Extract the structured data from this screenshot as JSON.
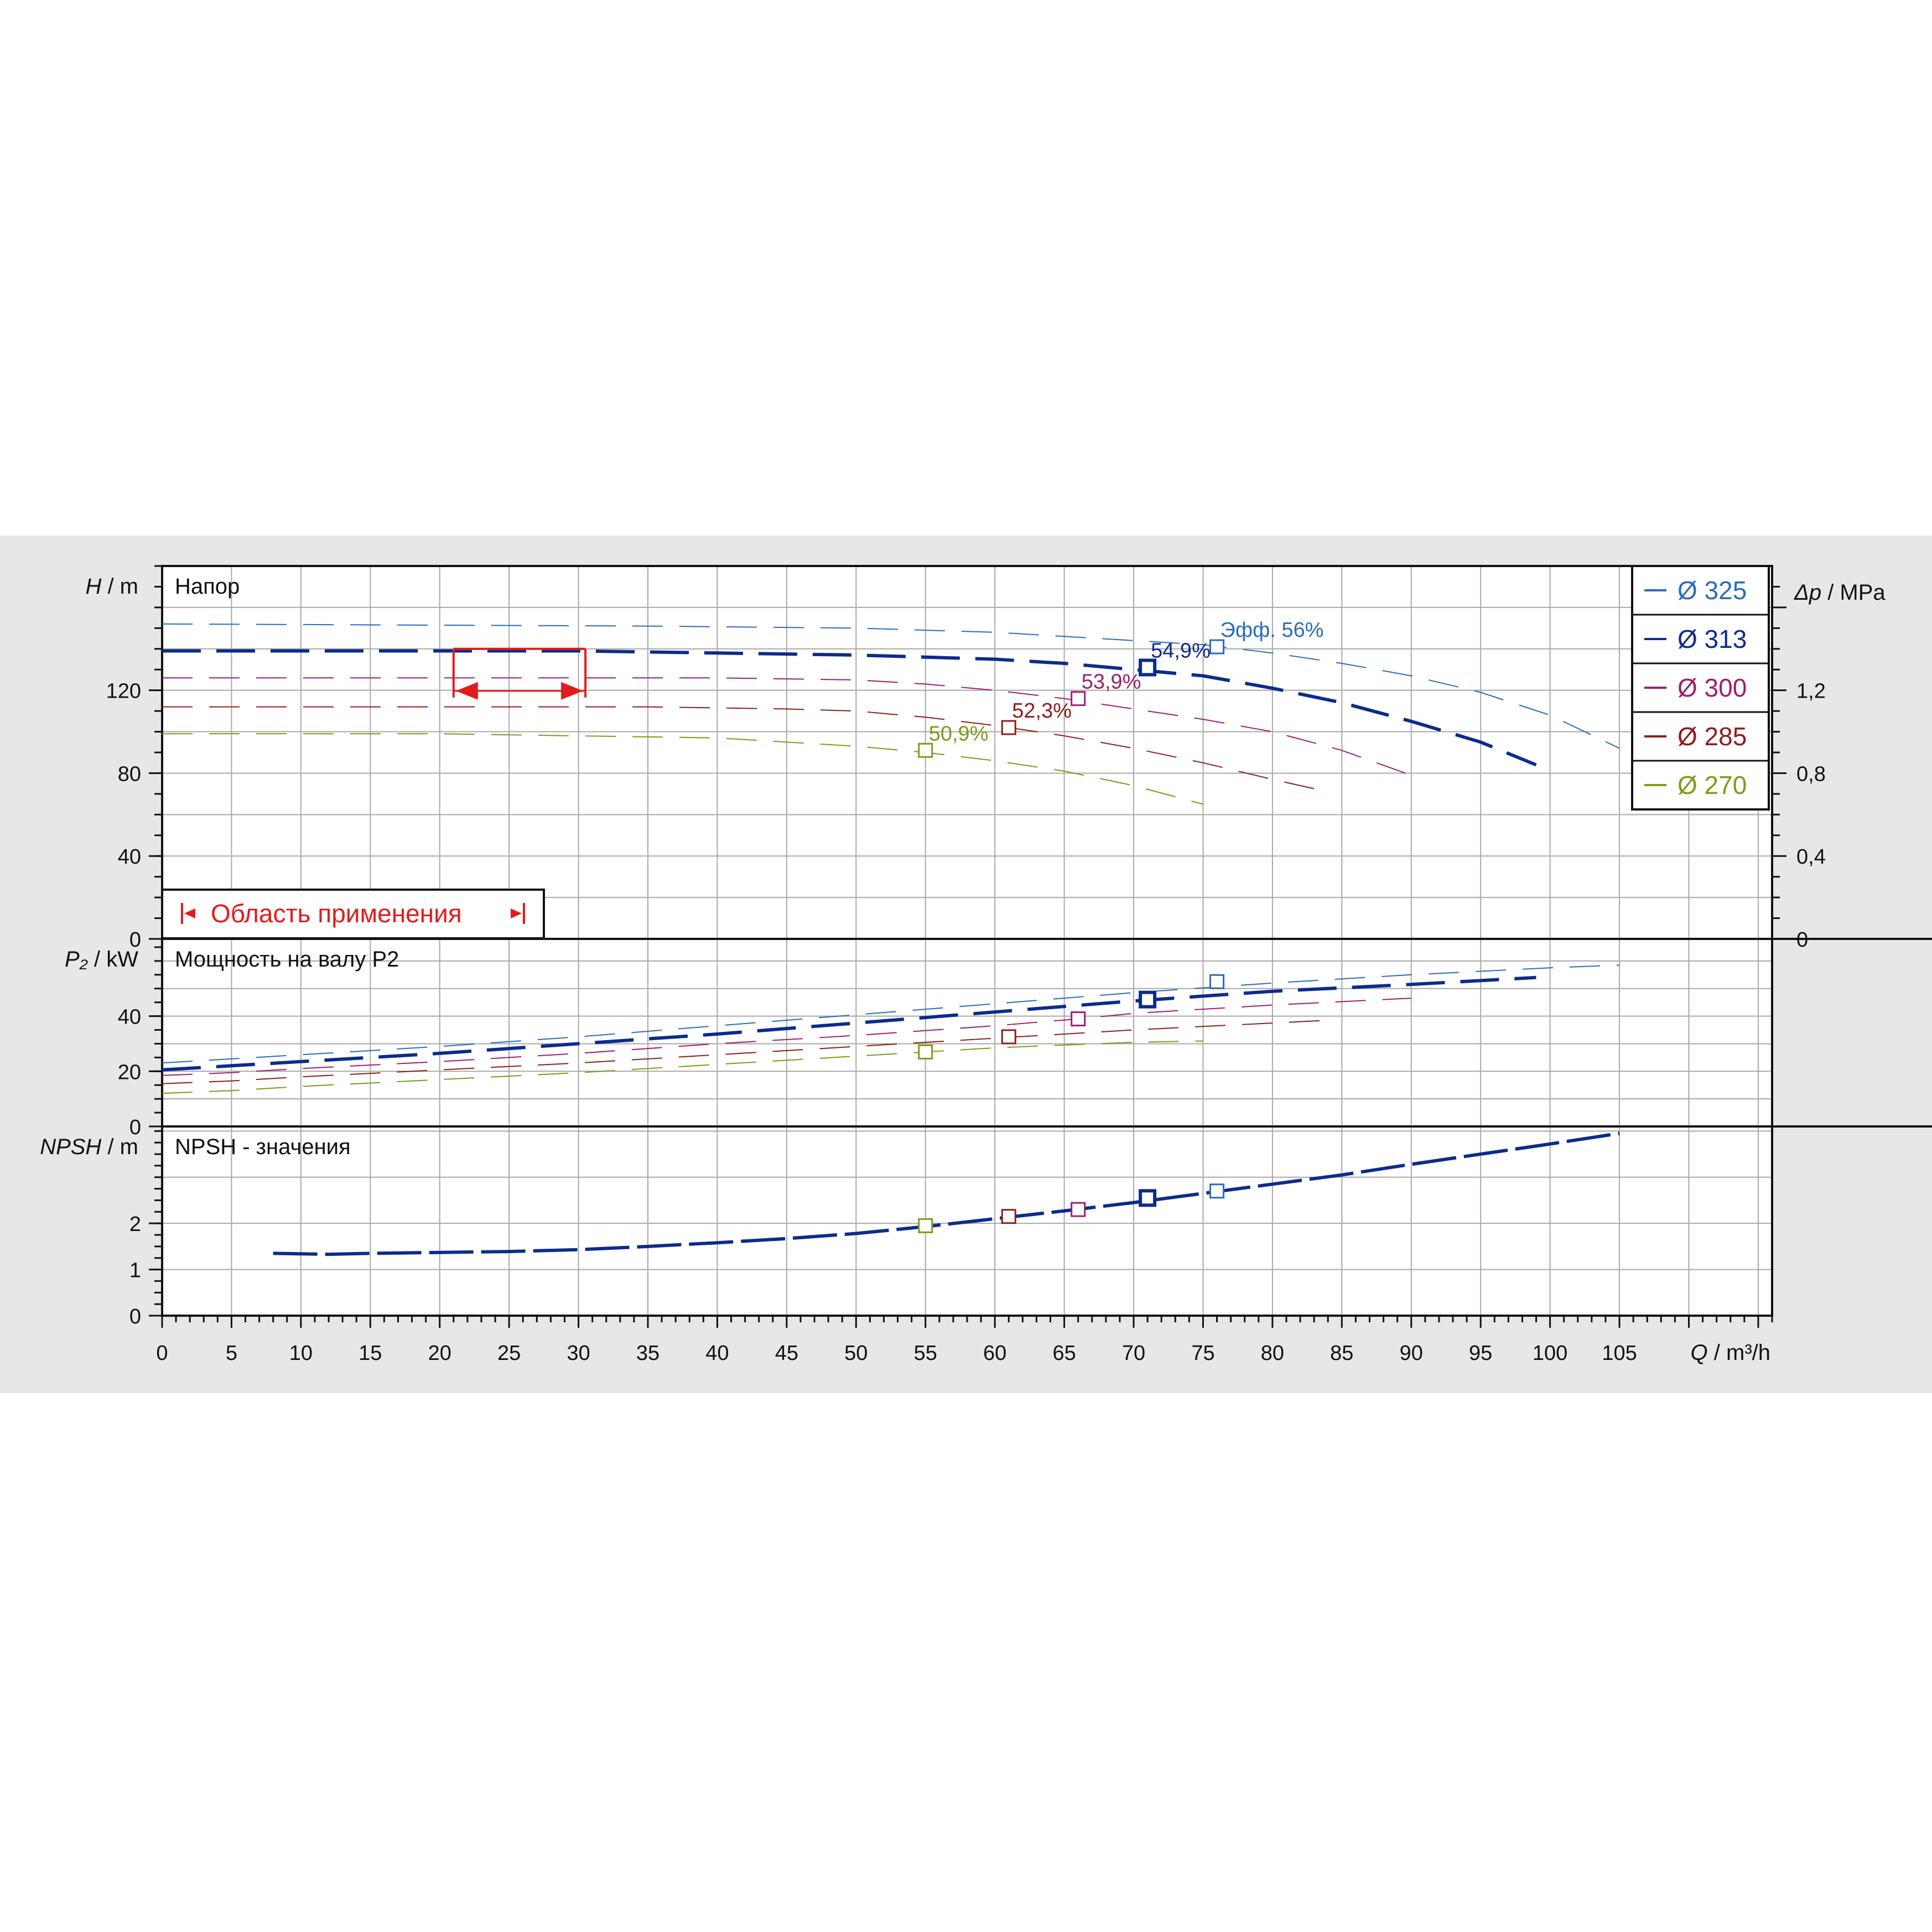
{
  "chart_data": {
    "type": "line",
    "x_axis": {
      "label_var": "Q",
      "label_unit": "m³/h",
      "range": [
        0,
        116
      ],
      "ticks": [
        0,
        5,
        10,
        15,
        20,
        25,
        30,
        35,
        40,
        45,
        50,
        55,
        60,
        65,
        70,
        75,
        80,
        85,
        90,
        95,
        100,
        105
      ]
    },
    "panels": [
      {
        "id": "head",
        "title": "Напор",
        "ylabel_var": "H",
        "ylabel_unit": "m",
        "ylim": [
          0,
          180
        ],
        "yticks": [
          0,
          40,
          80,
          120
        ],
        "secondary_axis": {
          "label_var": "Δp",
          "label_unit": "MPa",
          "ticks": [
            "0",
            "0,4",
            "0,8",
            "1,2"
          ],
          "ylim": [
            0,
            1.8
          ]
        },
        "application_range": {
          "label": "Область применения",
          "q_range": [
            21,
            30.5
          ],
          "h": 140
        }
      },
      {
        "id": "power",
        "title": "Мощность на валу P2",
        "ylabel_var": "P₂",
        "ylabel_unit": "kW",
        "ylim": [
          0,
          68
        ],
        "yticks": [
          0,
          20,
          40
        ]
      },
      {
        "id": "npsh",
        "title": "NPSH - значения",
        "ylabel_var": "NPSH",
        "ylabel_unit": "m",
        "ylim": [
          0,
          4.1
        ],
        "yticks": [
          0,
          1,
          2
        ]
      }
    ],
    "series": [
      {
        "name": "Ø 325",
        "color": "#2a6db8",
        "weight": 2,
        "head": {
          "x": [
            0,
            35,
            50,
            60,
            65,
            70,
            75,
            80,
            85,
            90,
            95,
            100,
            105
          ],
          "y": [
            152,
            151,
            150,
            148,
            146,
            144,
            142,
            138,
            133,
            127,
            119,
            108,
            92
          ]
        },
        "power": {
          "x": [
            0,
            5,
            10,
            20,
            30,
            40,
            50,
            60,
            70,
            80,
            90,
            100,
            105
          ],
          "y": [
            23,
            24.5,
            26,
            29,
            32.5,
            36.5,
            40.5,
            44.5,
            48.5,
            52,
            55,
            57.5,
            58.5
          ]
        },
        "bep": {
          "q": 76,
          "h": 141,
          "p": 52.5,
          "npsh": 2.7,
          "label": "Эфф.  56%"
        }
      },
      {
        "name": "Ø 313",
        "color": "#0d2b8c",
        "weight": 6,
        "head": {
          "x": [
            0,
            30,
            40,
            50,
            60,
            65,
            70,
            75,
            80,
            85,
            90,
            95,
            99
          ],
          "y": [
            139,
            139,
            138,
            137,
            135,
            133,
            130,
            127,
            121,
            114,
            105,
            95,
            84
          ]
        },
        "power": {
          "x": [
            0,
            5,
            10,
            20,
            30,
            40,
            50,
            60,
            70,
            80,
            90,
            99
          ],
          "y": [
            20.5,
            22,
            23.5,
            26.5,
            30,
            33.5,
            37.5,
            41.5,
            45.5,
            49,
            51.5,
            54
          ]
        },
        "bep": {
          "q": 71,
          "h": 131,
          "p": 46,
          "npsh": 2.55,
          "label": "54,9%"
        }
      },
      {
        "name": "Ø 300",
        "color": "#9e1f6e",
        "weight": 2,
        "head": {
          "x": [
            0,
            40,
            50,
            55,
            60,
            65,
            70,
            75,
            80,
            85,
            90
          ],
          "y": [
            126,
            126,
            125,
            123,
            120,
            116,
            111,
            106,
            100,
            91,
            79
          ]
        },
        "power": {
          "x": [
            0,
            5,
            10,
            20,
            30,
            40,
            50,
            60,
            66,
            70,
            80,
            90
          ],
          "y": [
            18.5,
            19.5,
            21,
            23.5,
            26.5,
            30,
            33,
            36.5,
            39,
            41,
            44,
            46.5
          ]
        },
        "bep": {
          "q": 66,
          "h": 116,
          "p": 39,
          "npsh": 2.3,
          "label": "53,9%"
        }
      },
      {
        "name": "Ø 285",
        "color": "#8c1f1a",
        "weight": 2,
        "head": {
          "x": [
            0,
            35,
            45,
            50,
            55,
            60,
            65,
            70,
            75,
            80,
            84
          ],
          "y": [
            112,
            112,
            111,
            110,
            107,
            103,
            98,
            92,
            85,
            77,
            71
          ]
        },
        "power": {
          "x": [
            0,
            5,
            10,
            20,
            30,
            40,
            50,
            60,
            70,
            80,
            84
          ],
          "y": [
            15.5,
            16.5,
            18,
            20.5,
            23,
            26,
            29,
            32,
            35,
            37.5,
            38.5
          ]
        },
        "bep": {
          "q": 61,
          "h": 102,
          "p": 32.5,
          "npsh": 2.15,
          "label": "52,3%"
        }
      },
      {
        "name": "Ø 270",
        "color": "#7f9a1a",
        "weight": 2,
        "head": {
          "x": [
            0,
            20,
            30,
            40,
            45,
            50,
            55,
            60,
            65,
            70,
            75
          ],
          "y": [
            99,
            99,
            98,
            97,
            95,
            93,
            90,
            86,
            81,
            74,
            65
          ]
        },
        "power": {
          "x": [
            0,
            5,
            10,
            20,
            30,
            40,
            50,
            55,
            60,
            70,
            75
          ],
          "y": [
            12,
            13,
            14.5,
            17,
            19.5,
            22.5,
            25.5,
            27,
            28.5,
            30.5,
            31
          ]
        },
        "bep": {
          "q": 55,
          "h": 91,
          "p": 27,
          "npsh": 1.95,
          "label": "50,9%"
        }
      }
    ],
    "npsh_curve": {
      "color": "#0d2b8c",
      "x": [
        8,
        12,
        15,
        20,
        25,
        30,
        35,
        40,
        45,
        50,
        55,
        60,
        65,
        70,
        75,
        80,
        85,
        90,
        95,
        100,
        105
      ],
      "y": [
        1.35,
        1.33,
        1.35,
        1.37,
        1.39,
        1.43,
        1.5,
        1.58,
        1.67,
        1.78,
        1.93,
        2.1,
        2.27,
        2.45,
        2.65,
        2.85,
        3.05,
        3.28,
        3.5,
        3.72,
        3.95
      ]
    }
  }
}
